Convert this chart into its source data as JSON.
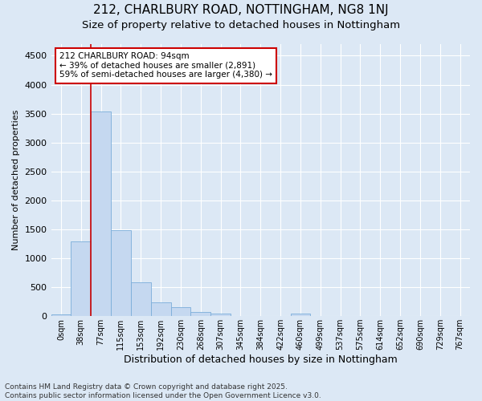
{
  "title_line1": "212, CHARLBURY ROAD, NOTTINGHAM, NG8 1NJ",
  "title_line2": "Size of property relative to detached houses in Nottingham",
  "xlabel": "Distribution of detached houses by size in Nottingham",
  "ylabel": "Number of detached properties",
  "bar_color": "#c5d8f0",
  "bar_edge_color": "#7aadda",
  "background_color": "#dce8f5",
  "grid_color": "#ffffff",
  "tick_labels": [
    "0sqm",
    "38sqm",
    "77sqm",
    "115sqm",
    "153sqm",
    "192sqm",
    "230sqm",
    "268sqm",
    "307sqm",
    "345sqm",
    "384sqm",
    "422sqm",
    "460sqm",
    "499sqm",
    "537sqm",
    "575sqm",
    "614sqm",
    "652sqm",
    "690sqm",
    "729sqm",
    "767sqm"
  ],
  "bar_values": [
    30,
    1290,
    3540,
    1490,
    590,
    240,
    155,
    75,
    45,
    0,
    0,
    0,
    40,
    0,
    0,
    0,
    0,
    0,
    0,
    0,
    0
  ],
  "ylim": [
    0,
    4700
  ],
  "yticks": [
    0,
    500,
    1000,
    1500,
    2000,
    2500,
    3000,
    3500,
    4000,
    4500
  ],
  "vline_x": 2,
  "vline_color": "#cc0000",
  "annotation_text": "212 CHARLBURY ROAD: 94sqm\n← 39% of detached houses are smaller (2,891)\n59% of semi-detached houses are larger (4,380) →",
  "annotation_box_color": "#ffffff",
  "annotation_box_edge": "#cc0000",
  "footnote": "Contains HM Land Registry data © Crown copyright and database right 2025.\nContains public sector information licensed under the Open Government Licence v3.0.",
  "title_fontsize": 11,
  "subtitle_fontsize": 9.5,
  "annotation_fontsize": 7.5,
  "footnote_fontsize": 6.5,
  "ylabel_fontsize": 8,
  "xlabel_fontsize": 9
}
